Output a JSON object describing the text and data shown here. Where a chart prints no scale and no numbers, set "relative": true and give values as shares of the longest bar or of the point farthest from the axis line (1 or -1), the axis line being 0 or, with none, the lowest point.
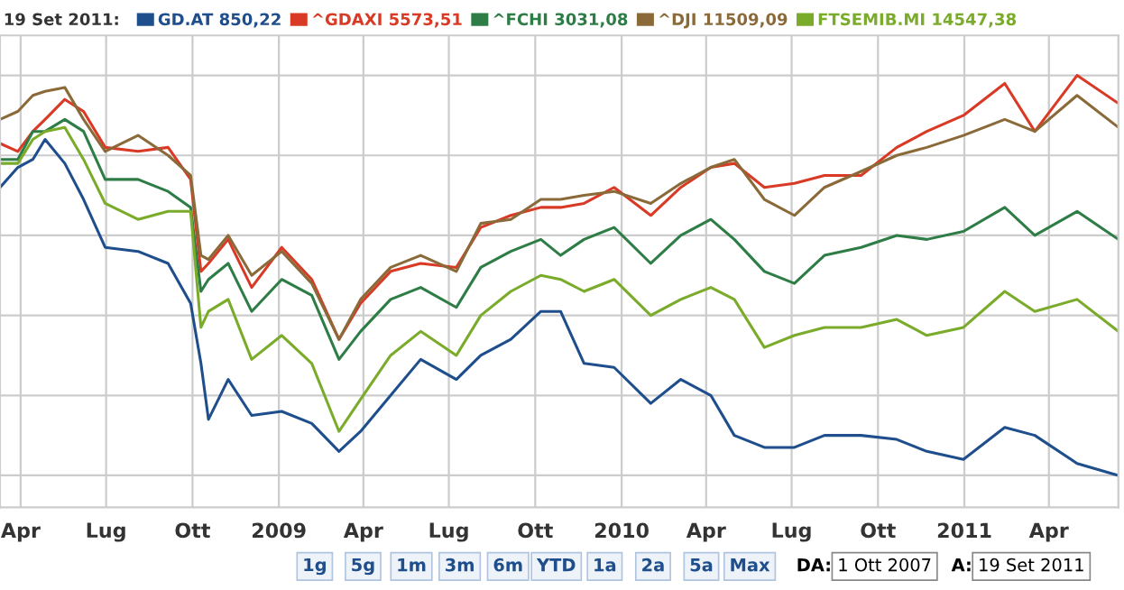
{
  "chart_data": {
    "type": "line",
    "relative": true,
    "legend_title": "19 Set 2011:",
    "legend": "top",
    "grid": true,
    "marker": "none",
    "line_style": "solid",
    "x": [
      "2008-03-10",
      "2008-03-29",
      "2008-04-14",
      "2008-04-27",
      "2008-05-18",
      "2008-06-07",
      "2008-06-30",
      "2008-08-04",
      "2008-09-05",
      "2008-09-29",
      "2008-10-10",
      "2008-10-18",
      "2008-11-08",
      "2008-12-03",
      "2009-01-04",
      "2009-02-05",
      "2009-03-06",
      "2009-03-29",
      "2009-04-30",
      "2009-06-01",
      "2009-07-09",
      "2009-08-04",
      "2009-09-05",
      "2009-10-07",
      "2009-10-28",
      "2009-11-22",
      "2009-12-24",
      "2010-02-01",
      "2010-03-05",
      "2010-04-06",
      "2010-05-01",
      "2010-06-02",
      "2010-07-04",
      "2010-08-05",
      "2010-09-13",
      "2010-10-21",
      "2010-11-22",
      "2010-12-31",
      "2011-02-13",
      "2011-03-17",
      "2011-05-01",
      "2011-06-14"
    ],
    "xlim": [
      "2008-03-10",
      "2011-06-14"
    ],
    "xticks": [
      {
        "value": "2008-04-01",
        "label": "Apr"
      },
      {
        "value": "2008-07-01",
        "label": "Lug"
      },
      {
        "value": "2008-10-01",
        "label": "Ott"
      },
      {
        "value": "2009-01-01",
        "label": "2009"
      },
      {
        "value": "2009-04-01",
        "label": "Apr"
      },
      {
        "value": "2009-07-01",
        "label": "Lug"
      },
      {
        "value": "2009-10-01",
        "label": "Ott"
      },
      {
        "value": "2010-01-01",
        "label": "2010"
      },
      {
        "value": "2010-04-01",
        "label": "Apr"
      },
      {
        "value": "2010-07-01",
        "label": "Lug"
      },
      {
        "value": "2010-10-01",
        "label": "Ott"
      },
      {
        "value": "2011-01-01",
        "label": "2011"
      },
      {
        "value": "2011-04-01",
        "label": "Apr"
      }
    ],
    "series": [
      {
        "name": "GD.AT 850,22",
        "color": "#1f4e8c",
        "values": [
          0.72,
          0.77,
          0.79,
          0.84,
          0.78,
          0.69,
          0.57,
          0.56,
          0.53,
          0.43,
          0.28,
          0.14,
          0.24,
          0.15,
          0.16,
          0.13,
          0.06,
          0.11,
          0.2,
          0.29,
          0.24,
          0.3,
          0.34,
          0.41,
          0.41,
          0.28,
          0.27,
          0.18,
          0.24,
          0.2,
          0.1,
          0.07,
          0.07,
          0.1,
          0.1,
          0.09,
          0.06,
          0.04,
          0.12,
          0.1,
          0.03,
          0.0
        ]
      },
      {
        "name": "^GDAXI 5573,51",
        "color": "#d93a26",
        "values": [
          0.83,
          0.81,
          0.86,
          0.89,
          0.94,
          0.91,
          0.82,
          0.81,
          0.82,
          0.74,
          0.51,
          0.53,
          0.59,
          0.47,
          0.57,
          0.49,
          0.34,
          0.43,
          0.51,
          0.53,
          0.52,
          0.62,
          0.65,
          0.67,
          0.67,
          0.68,
          0.72,
          0.65,
          0.72,
          0.77,
          0.78,
          0.72,
          0.73,
          0.75,
          0.75,
          0.82,
          0.86,
          0.9,
          0.98,
          0.86,
          1.0,
          0.93
        ]
      },
      {
        "name": "^FCHI 3031,08",
        "color": "#2f7d46",
        "values": [
          0.79,
          0.79,
          0.86,
          0.86,
          0.89,
          0.86,
          0.74,
          0.74,
          0.71,
          0.67,
          0.46,
          0.49,
          0.53,
          0.41,
          0.49,
          0.45,
          0.29,
          0.36,
          0.44,
          0.47,
          0.42,
          0.52,
          0.56,
          0.59,
          0.55,
          0.59,
          0.62,
          0.53,
          0.6,
          0.64,
          0.59,
          0.51,
          0.48,
          0.55,
          0.57,
          0.6,
          0.59,
          0.61,
          0.67,
          0.6,
          0.66,
          0.59
        ]
      },
      {
        "name": "^DJI 11509,09",
        "color": "#8b6a3a",
        "values": [
          0.89,
          0.91,
          0.95,
          0.96,
          0.97,
          0.89,
          0.81,
          0.85,
          0.8,
          0.75,
          0.55,
          0.54,
          0.6,
          0.5,
          0.56,
          0.48,
          0.34,
          0.44,
          0.52,
          0.55,
          0.51,
          0.63,
          0.64,
          0.69,
          0.69,
          0.7,
          0.71,
          0.68,
          0.73,
          0.77,
          0.79,
          0.69,
          0.65,
          0.72,
          0.76,
          0.8,
          0.82,
          0.85,
          0.89,
          0.86,
          0.95,
          0.87
        ]
      },
      {
        "name": "FTSEMIB.MI 14547,38",
        "color": "#7aab2a",
        "values": [
          0.78,
          0.78,
          0.84,
          0.86,
          0.87,
          0.79,
          0.68,
          0.64,
          0.66,
          0.66,
          0.37,
          0.41,
          0.44,
          0.29,
          0.35,
          0.28,
          0.11,
          0.19,
          0.3,
          0.36,
          0.3,
          0.4,
          0.46,
          0.5,
          0.49,
          0.46,
          0.49,
          0.4,
          0.44,
          0.47,
          0.44,
          0.32,
          0.35,
          0.37,
          0.37,
          0.39,
          0.35,
          0.37,
          0.46,
          0.41,
          0.44,
          0.36
        ]
      }
    ],
    "annotations": [
      "1g",
      "5g",
      "1m",
      "3m",
      "6m",
      "YTD",
      "1a",
      "2a",
      "5a",
      "Max",
      "DA:",
      "1 Ott 2007",
      "A:",
      "19 Set 2011"
    ]
  }
}
